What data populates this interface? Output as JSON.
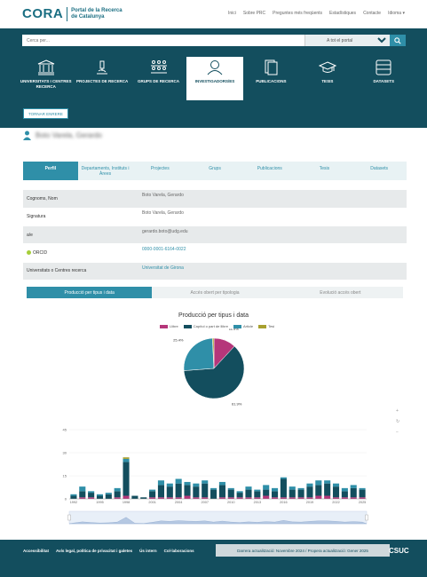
{
  "header": {
    "logo_main": "CORA",
    "logo_sub": "Portal de la Recerca de Catalunya",
    "top_links": [
      "Inici",
      "Sobre PRC",
      "Preguntes més freqüents",
      "Estadístiques",
      "Contacte",
      "Idioma"
    ]
  },
  "search": {
    "placeholder": "Cerca per...",
    "scope": "A tot el portal"
  },
  "main_nav": [
    {
      "label": "UNIVERSITATS I CENTRES RECERCA",
      "icon": "university-icon"
    },
    {
      "label": "PROJECTES DE RECERCA",
      "icon": "microscope-icon"
    },
    {
      "label": "GRUPS DE RECERCA",
      "icon": "group-icon"
    },
    {
      "label": "INVESTIGADORS/ES",
      "icon": "researcher-icon"
    },
    {
      "label": "PUBLICACIONS",
      "icon": "publications-icon"
    },
    {
      "label": "TESIS",
      "icon": "graduation-cap-icon"
    },
    {
      "label": "DATASETS",
      "icon": "dataset-icon"
    }
  ],
  "back_button": "TORNAR ENRERE",
  "researcher_name": "Boto Varela, Gerardo",
  "profile_tabs": [
    "Perfil",
    "Departaments, Instituts i Àrees",
    "Projectes",
    "Grups",
    "Publicacions",
    "Tesis",
    "Datasets"
  ],
  "fields": [
    {
      "label": "Cognoms, Nom",
      "value": "Boto Varela, Gerardo",
      "link": false
    },
    {
      "label": "Signatura",
      "value": "Boto Varela, Gerardo",
      "link": false
    },
    {
      "label": "a/e",
      "value": "gerardo.boto@udg.edu",
      "link": false
    },
    {
      "label": "ORCID",
      "value": "0000-0001-6164-0022",
      "link": true
    },
    {
      "label": "Universitats o Centres recerca",
      "value": "Universitat de Girona",
      "link": true
    }
  ],
  "chart_tabs": [
    "Producció per tipus i data",
    "Accés obert per tipologia",
    "Evolució accés obert"
  ],
  "chart_data": [
    {
      "type": "pie",
      "title": "Producció per tipus i data",
      "series": [
        {
          "name": "Llibre",
          "value": 11.9,
          "color": "#b5367a"
        },
        {
          "name": "Capítol o part de llibre",
          "value": 61.9,
          "color": "#134e5e"
        },
        {
          "name": "Article",
          "value": 25.4,
          "color": "#2f8fa8"
        },
        {
          "name": "Tesi",
          "value": 0.8,
          "color": "#a8a02f"
        }
      ],
      "labels": [
        "11.9%",
        "61.9%",
        "25.4%",
        "0.8%"
      ]
    },
    {
      "type": "bar",
      "stacked": true,
      "ylim": [
        0,
        45
      ],
      "yticks": [
        "0",
        "15",
        "30",
        "45"
      ],
      "categories": [
        "1992",
        "1993",
        "1994",
        "1995",
        "1996",
        "1997",
        "1998",
        "1999",
        "2000",
        "2001",
        "2002",
        "2003",
        "2004",
        "2005",
        "2006",
        "2007",
        "2008",
        "2009",
        "2010",
        "2011",
        "2012",
        "2013",
        "2014",
        "2015",
        "2016",
        "2017",
        "2018",
        "2019",
        "2020",
        "2021",
        "2022",
        "2023",
        "2024",
        "2025"
      ],
      "xticks": [
        "1992",
        "1995",
        "1998",
        "2001",
        "2004",
        "2007",
        "2010",
        "2013",
        "2016",
        "2019",
        "2022",
        "2025"
      ],
      "series": [
        {
          "name": "Llibre",
          "color": "#b5367a",
          "values": [
            0,
            1,
            1,
            0,
            0,
            1,
            2,
            0,
            0,
            1,
            1,
            1,
            1,
            2,
            1,
            1,
            0,
            1,
            1,
            1,
            1,
            1,
            2,
            1,
            1,
            1,
            1,
            1,
            2,
            2,
            1,
            1,
            1,
            1
          ]
        },
        {
          "name": "Capítol o part de llibre",
          "color": "#134e5e",
          "values": [
            2,
            4,
            3,
            2,
            3,
            4,
            22,
            2,
            1,
            4,
            8,
            7,
            9,
            7,
            7,
            9,
            6,
            8,
            5,
            3,
            5,
            4,
            4,
            4,
            12,
            5,
            5,
            7,
            7,
            8,
            7,
            4,
            6,
            5
          ]
        },
        {
          "name": "Article",
          "color": "#2f8fa8",
          "values": [
            1,
            3,
            1,
            1,
            1,
            2,
            2,
            0,
            0,
            1,
            3,
            2,
            3,
            2,
            2,
            2,
            1,
            2,
            1,
            1,
            2,
            1,
            3,
            2,
            1,
            2,
            1,
            2,
            3,
            2,
            2,
            2,
            2,
            1
          ]
        },
        {
          "name": "Tesi",
          "color": "#a8a02f",
          "values": [
            0,
            0,
            0,
            0,
            0,
            0,
            1,
            0,
            0,
            0,
            0,
            0,
            0,
            0,
            0,
            0,
            0,
            0,
            0,
            0,
            0,
            0,
            0,
            0,
            0,
            0,
            0,
            0,
            0,
            0,
            0,
            0,
            0,
            0
          ]
        }
      ]
    }
  ],
  "chart_tools": [
    "+",
    "↻",
    "−"
  ],
  "footer": {
    "links": [
      "Accessibilitat",
      "Avís legal, política de privacitat i galetes",
      "Ús intern",
      "Col·laboracions"
    ],
    "updated": "Darrera actualització: Novembre 2024 / Propera actualització: Gener 2025",
    "brand": "CSUC"
  }
}
